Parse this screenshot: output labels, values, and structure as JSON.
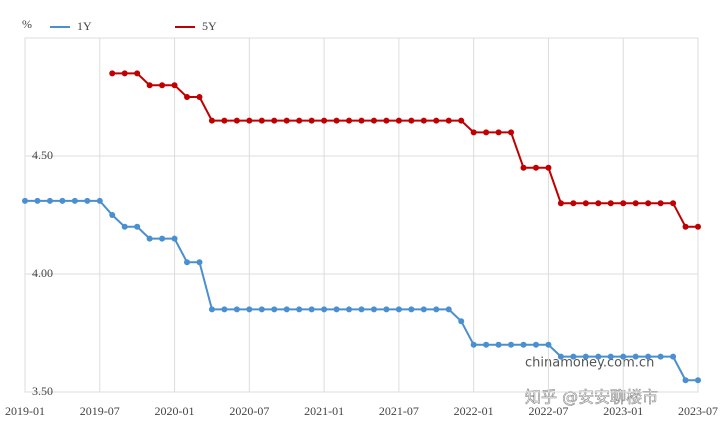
{
  "chart_data": {
    "type": "line",
    "y_label": "%",
    "categories": [
      "2019-01",
      null,
      null,
      null,
      null,
      null,
      "2019-07",
      null,
      null,
      null,
      null,
      null,
      "2020-01",
      null,
      null,
      null,
      null,
      null,
      "2020-07",
      null,
      null,
      null,
      null,
      null,
      "2021-01",
      null,
      null,
      null,
      null,
      null,
      "2021-07",
      null,
      null,
      null,
      null,
      null,
      "2022-01",
      null,
      null,
      null,
      null,
      null,
      "2022-07",
      null,
      null,
      null,
      null,
      null,
      "2023-01",
      null,
      null,
      null,
      null,
      null,
      "2023-07"
    ],
    "series": [
      {
        "name": "1Y",
        "color": "#4a8fcf",
        "values": [
          4.31,
          4.31,
          4.31,
          4.31,
          4.31,
          4.31,
          4.31,
          4.25,
          4.2,
          4.2,
          4.15,
          4.15,
          4.15,
          4.05,
          4.05,
          3.85,
          3.85,
          3.85,
          3.85,
          3.85,
          3.85,
          3.85,
          3.85,
          3.85,
          3.85,
          3.85,
          3.85,
          3.85,
          3.85,
          3.85,
          3.85,
          3.85,
          3.85,
          3.85,
          3.85,
          3.8,
          3.7,
          3.7,
          3.7,
          3.7,
          3.7,
          3.7,
          3.7,
          3.65,
          3.65,
          3.65,
          3.65,
          3.65,
          3.65,
          3.65,
          3.65,
          3.65,
          3.65,
          3.55,
          3.55
        ]
      },
      {
        "name": "5Y",
        "color": "#c00000",
        "values": [
          null,
          null,
          null,
          null,
          null,
          null,
          null,
          4.85,
          4.85,
          4.85,
          4.8,
          4.8,
          4.8,
          4.75,
          4.75,
          4.65,
          4.65,
          4.65,
          4.65,
          4.65,
          4.65,
          4.65,
          4.65,
          4.65,
          4.65,
          4.65,
          4.65,
          4.65,
          4.65,
          4.65,
          4.65,
          4.65,
          4.65,
          4.65,
          4.65,
          4.65,
          4.6,
          4.6,
          4.6,
          4.6,
          4.45,
          4.45,
          4.45,
          4.3,
          4.3,
          4.3,
          4.3,
          4.3,
          4.3,
          4.3,
          4.3,
          4.3,
          4.3,
          4.2,
          4.2
        ]
      }
    ],
    "ylim": [
      3.5,
      5.0
    ],
    "yticks": [
      {
        "value": 3.5,
        "label": "3.50"
      },
      {
        "value": 4.0,
        "label": "4.00"
      },
      {
        "value": 4.5,
        "label": "4.50"
      }
    ],
    "grid": true,
    "annotations": [
      "chinamoney.com.cn",
      "知乎 @安安聊楼市"
    ]
  }
}
